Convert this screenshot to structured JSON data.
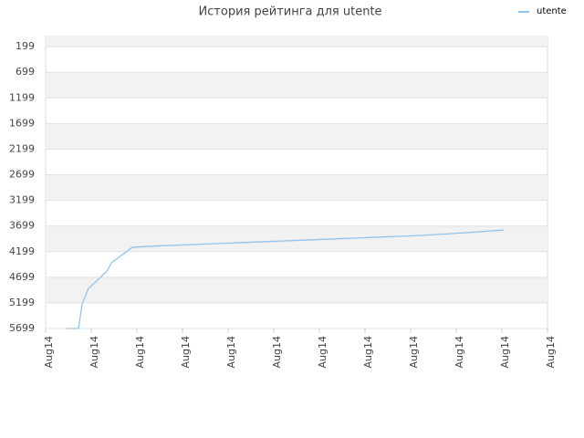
{
  "chart_data": {
    "type": "line",
    "title": "История рейтинга для utente",
    "x": [
      0.46,
      0.72,
      0.76,
      0.8,
      0.94,
      1.2,
      1.36,
      1.44,
      1.9,
      2.2,
      3.2,
      4.2,
      5.2,
      6.2,
      7.2,
      8.2,
      9.2,
      10.04
    ],
    "series": [
      {
        "name": "utente",
        "color": "#90c4f0",
        "values": [
          5699,
          5699,
          5468,
          5218,
          4916,
          4702,
          4560,
          4417,
          4115,
          4097,
          4061,
          4026,
          3990,
          3955,
          3919,
          3884,
          3830,
          3777
        ]
      }
    ],
    "xlim": [
      0,
      11
    ],
    "xticks": [
      {
        "value": 0,
        "label": "Aug14"
      },
      {
        "value": 1,
        "label": "Aug14"
      },
      {
        "value": 2,
        "label": "Aug14"
      },
      {
        "value": 3,
        "label": "Aug14"
      },
      {
        "value": 4,
        "label": "Aug14"
      },
      {
        "value": 5,
        "label": "Aug14"
      },
      {
        "value": 6,
        "label": "Aug14"
      },
      {
        "value": 7,
        "label": "Aug14"
      },
      {
        "value": 8,
        "label": "Aug14"
      },
      {
        "value": 9,
        "label": "Aug14"
      },
      {
        "value": 10,
        "label": "Aug14"
      },
      {
        "value": 11,
        "label": "Aug14"
      }
    ],
    "ylim": [
      5699,
      0
    ],
    "yticks": [
      199,
      699,
      1199,
      1699,
      2199,
      2699,
      3199,
      3699,
      4199,
      4699,
      5199,
      5699
    ],
    "grid": true,
    "legend": "top-right"
  }
}
